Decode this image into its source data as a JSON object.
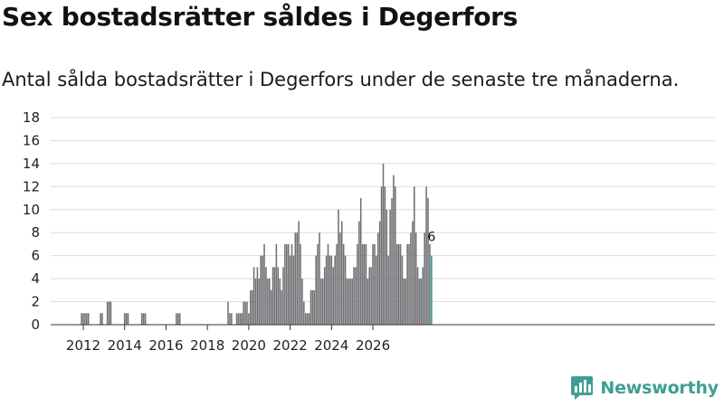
{
  "title": "Sex bostadsrätter såldes i Degerfors",
  "subtitle": "Antal sålda bostadsrätter i Degerfors under de senaste tre månaderna.",
  "brand": {
    "name": "Newsworthy",
    "logo_icon": "newsworthy-bar-chart-icon"
  },
  "colors": {
    "bar": "#707074",
    "highlight": "#2c9a8c",
    "grid": "#dcdcdc",
    "axis": "#333333"
  },
  "chart_data": {
    "type": "bar",
    "title": "Sex bostadsrätter såldes i Degerfors",
    "xlabel": "",
    "ylabel": "",
    "ylim": [
      0,
      18
    ],
    "yticks": [
      "0",
      "2",
      "4",
      "6",
      "8",
      "10",
      "12",
      "14",
      "16",
      "18"
    ],
    "xticks": [
      "2012",
      "2014",
      "2016",
      "2018",
      "2020",
      "2022",
      "2024",
      "2026"
    ],
    "series": [
      {
        "name": "Antal sålda bostadsrätter (3 mån)",
        "start": "2011-10",
        "values": [
          0,
          0,
          1,
          1,
          1,
          1,
          1,
          0,
          0,
          0,
          0,
          0,
          0,
          1,
          1,
          0,
          0,
          2,
          2,
          2,
          0,
          0,
          0,
          0,
          0,
          0,
          0,
          1,
          1,
          1,
          0,
          0,
          0,
          0,
          0,
          0,
          0,
          1,
          1,
          1,
          0,
          0,
          0,
          0,
          0,
          0,
          0,
          0,
          0,
          0,
          0,
          0,
          0,
          0,
          0,
          0,
          0,
          1,
          1,
          1,
          0,
          0,
          0,
          0,
          0,
          0,
          0,
          0,
          0,
          0,
          0,
          0,
          0,
          0,
          0,
          0,
          0,
          0,
          0,
          0,
          0,
          0,
          0,
          0,
          0,
          0,
          0,
          2,
          1,
          1,
          0,
          0,
          1,
          1,
          1,
          1,
          2,
          2,
          2,
          1,
          3,
          3,
          5,
          4,
          5,
          4,
          6,
          6,
          7,
          5,
          4,
          4,
          3,
          5,
          5,
          7,
          5,
          4,
          3,
          5,
          7,
          7,
          7,
          6,
          7,
          6,
          8,
          8,
          9,
          7,
          4,
          2,
          1,
          1,
          1,
          3,
          3,
          3,
          6,
          7,
          8,
          4,
          4,
          5,
          6,
          7,
          6,
          6,
          5,
          6,
          7,
          10,
          8,
          9,
          7,
          6,
          4,
          4,
          4,
          4,
          5,
          5,
          7,
          9,
          11,
          7,
          7,
          7,
          4,
          5,
          5,
          7,
          7,
          6,
          8,
          9,
          12,
          14,
          12,
          10,
          6,
          10,
          11,
          13,
          12,
          7,
          7,
          7,
          6,
          4,
          4,
          7,
          7,
          8,
          9,
          12,
          8,
          5,
          4,
          4,
          5,
          8,
          12,
          11,
          7,
          6
        ]
      }
    ],
    "annotations": [
      {
        "label": "6"
      }
    ]
  }
}
